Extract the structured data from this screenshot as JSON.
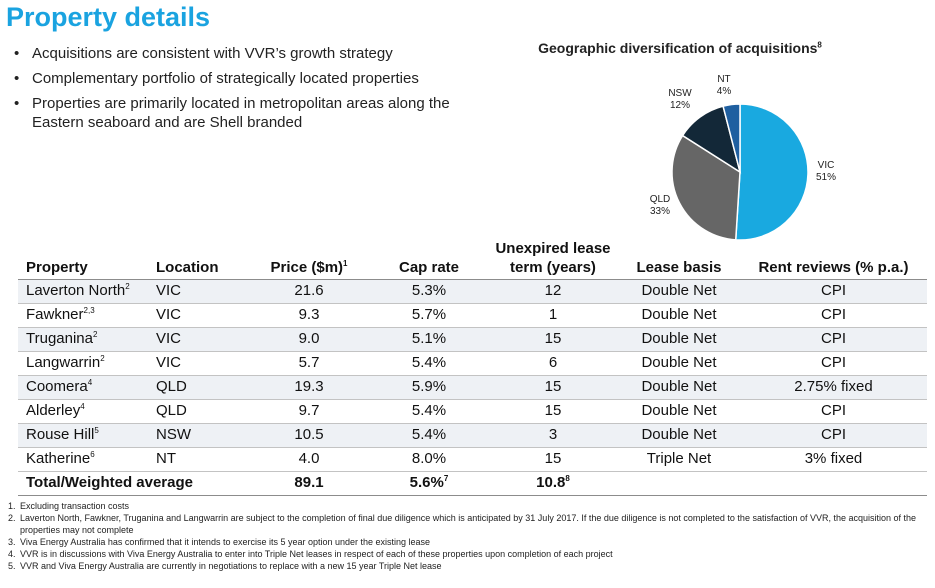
{
  "page": {
    "title": "Property details",
    "bullets": [
      "Acquisitions are consistent with VVR’s growth strategy",
      "Complementary portfolio of strategically located properties",
      "Properties are primarily located in metropolitan areas along the Eastern seaboard and are Shell branded"
    ]
  },
  "chart_data": {
    "type": "pie",
    "title": "Geographic diversification of acquisitions",
    "title_footnote": "8",
    "slices": [
      {
        "label": "VIC",
        "value": 51,
        "display": "51%",
        "color": "#19a9e0"
      },
      {
        "label": "QLD",
        "value": 33,
        "display": "33%",
        "color": "#666666"
      },
      {
        "label": "NSW",
        "value": 12,
        "display": "12%",
        "color": "#132838"
      },
      {
        "label": "NT",
        "value": 4,
        "display": "4%",
        "color": "#1f5fa0"
      }
    ],
    "legend": "none"
  },
  "table": {
    "headers": {
      "property": "Property",
      "location": "Location",
      "price": "Price ($m)",
      "price_note": "1",
      "cap_rate": "Cap rate",
      "lease_term": "Unexpired lease term (years)",
      "lease_basis": "Lease basis",
      "rent_reviews": "Rent reviews (% p.a.)"
    },
    "rows": [
      {
        "property": "Laverton North",
        "note": "2",
        "location": "VIC",
        "price": "21.6",
        "cap_rate": "5.3%",
        "term": "12",
        "basis": "Double Net",
        "reviews": "CPI"
      },
      {
        "property": "Fawkner",
        "note": "2,3",
        "location": "VIC",
        "price": "9.3",
        "cap_rate": "5.7%",
        "term": "1",
        "basis": "Double Net",
        "reviews": "CPI"
      },
      {
        "property": "Truganina",
        "note": "2",
        "location": "VIC",
        "price": "9.0",
        "cap_rate": "5.1%",
        "term": "15",
        "basis": "Double Net",
        "reviews": "CPI"
      },
      {
        "property": "Langwarrin",
        "note": "2",
        "location": "VIC",
        "price": "5.7",
        "cap_rate": "5.4%",
        "term": "6",
        "basis": "Double Net",
        "reviews": "CPI"
      },
      {
        "property": "Coomera",
        "note": "4",
        "location": "QLD",
        "price": "19.3",
        "cap_rate": "5.9%",
        "term": "15",
        "basis": "Double Net",
        "reviews": "2.75% fixed"
      },
      {
        "property": "Alderley",
        "note": "4",
        "location": "QLD",
        "price": "9.7",
        "cap_rate": "5.4%",
        "term": "15",
        "basis": "Double Net",
        "reviews": "CPI"
      },
      {
        "property": "Rouse Hill",
        "note": "5",
        "location": "NSW",
        "price": "10.5",
        "cap_rate": "5.4%",
        "term": "3",
        "basis": "Double Net",
        "reviews": "CPI"
      },
      {
        "property": "Katherine",
        "note": "6",
        "location": "NT",
        "price": "4.0",
        "cap_rate": "8.0%",
        "term": "15",
        "basis": "Triple Net",
        "reviews": "3% fixed"
      }
    ],
    "total": {
      "label": "Total/Weighted average",
      "price": "89.1",
      "cap_rate": "5.6%",
      "cap_rate_note": "7",
      "term": "10.8",
      "term_note": "8"
    }
  },
  "footnotes": [
    {
      "num": "1.",
      "text": "Excluding transaction costs"
    },
    {
      "num": "2.",
      "text": "Laverton North, Fawkner, Truganina and Langwarrin are subject to the completion of final due diligence which is anticipated by 31 July 2017. If the due diligence is not completed to the satisfaction of VVR, the acquisition of the properties may not complete"
    },
    {
      "num": "3.",
      "text": "Viva Energy Australia has confirmed that it intends to exercise its 5 year option under the existing lease"
    },
    {
      "num": "4.",
      "text": "VVR is in discussions with Viva Energy Australia to enter into Triple Net leases in respect of each of these properties upon completion of each project"
    },
    {
      "num": "5.",
      "text": "VVR and Viva Energy Australia are currently in negotiations to replace with a new 15 year Triple Net lease"
    }
  ]
}
